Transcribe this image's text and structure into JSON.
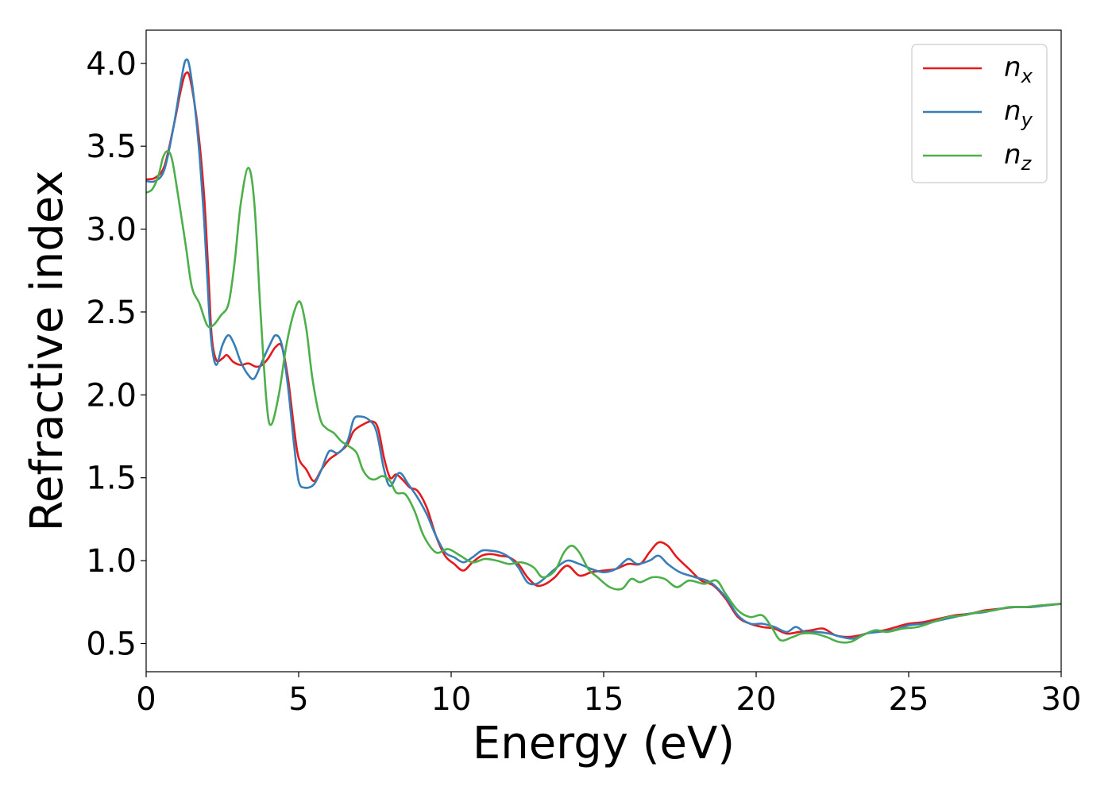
{
  "chart_data": {
    "type": "line",
    "xlabel": "Energy (eV)",
    "ylabel": "Refractive index",
    "xlim": [
      0,
      30
    ],
    "ylim": [
      0.33,
      4.2
    ],
    "xticks": [
      0,
      5,
      10,
      15,
      20,
      25,
      30
    ],
    "xtick_labels": [
      "0",
      "5",
      "10",
      "15",
      "20",
      "25",
      "30"
    ],
    "yticks": [
      0.5,
      1.0,
      1.5,
      2.0,
      2.5,
      3.0,
      3.5,
      4.0
    ],
    "ytick_labels": [
      "0.5",
      "1.0",
      "1.5",
      "2.0",
      "2.5",
      "3.0",
      "3.5",
      "4.0"
    ],
    "grid": false,
    "legend_position": "top-right",
    "series": [
      {
        "name": "n",
        "sub": "x",
        "color": "#e41a1c",
        "points": [
          [
            0,
            3.3
          ],
          [
            0.3,
            3.31
          ],
          [
            0.6,
            3.38
          ],
          [
            0.9,
            3.62
          ],
          [
            1.15,
            3.85
          ],
          [
            1.3,
            3.94
          ],
          [
            1.45,
            3.9
          ],
          [
            1.7,
            3.6
          ],
          [
            1.9,
            3.2
          ],
          [
            2.05,
            2.7
          ],
          [
            2.15,
            2.35
          ],
          [
            2.3,
            2.21
          ],
          [
            2.5,
            2.22
          ],
          [
            2.65,
            2.24
          ],
          [
            2.85,
            2.2
          ],
          [
            3.1,
            2.18
          ],
          [
            3.35,
            2.19
          ],
          [
            3.6,
            2.17
          ],
          [
            3.8,
            2.18
          ],
          [
            4.0,
            2.22
          ],
          [
            4.25,
            2.29
          ],
          [
            4.45,
            2.29
          ],
          [
            4.65,
            2.1
          ],
          [
            4.85,
            1.8
          ],
          [
            5.0,
            1.62
          ],
          [
            5.25,
            1.55
          ],
          [
            5.5,
            1.48
          ],
          [
            5.75,
            1.55
          ],
          [
            6.0,
            1.61
          ],
          [
            6.3,
            1.65
          ],
          [
            6.6,
            1.7
          ],
          [
            6.8,
            1.78
          ],
          [
            7.1,
            1.82
          ],
          [
            7.4,
            1.84
          ],
          [
            7.6,
            1.8
          ],
          [
            7.8,
            1.62
          ],
          [
            8.0,
            1.5
          ],
          [
            8.2,
            1.52
          ],
          [
            8.45,
            1.48
          ],
          [
            8.65,
            1.44
          ],
          [
            8.9,
            1.42
          ],
          [
            9.2,
            1.32
          ],
          [
            9.5,
            1.15
          ],
          [
            9.8,
            1.03
          ],
          [
            10.1,
            0.98
          ],
          [
            10.4,
            0.94
          ],
          [
            10.7,
            0.99
          ],
          [
            11.0,
            1.03
          ],
          [
            11.3,
            1.04
          ],
          [
            11.6,
            1.03
          ],
          [
            11.9,
            1.02
          ],
          [
            12.2,
            0.98
          ],
          [
            12.5,
            0.9
          ],
          [
            12.8,
            0.85
          ],
          [
            13.1,
            0.86
          ],
          [
            13.4,
            0.9
          ],
          [
            13.8,
            0.97
          ],
          [
            14.2,
            0.91
          ],
          [
            14.6,
            0.93
          ],
          [
            15.0,
            0.94
          ],
          [
            15.4,
            0.95
          ],
          [
            15.8,
            0.98
          ],
          [
            16.2,
            0.98
          ],
          [
            16.5,
            1.05
          ],
          [
            16.8,
            1.11
          ],
          [
            17.1,
            1.09
          ],
          [
            17.4,
            1.02
          ],
          [
            17.8,
            0.95
          ],
          [
            18.2,
            0.88
          ],
          [
            18.6,
            0.85
          ],
          [
            19.0,
            0.77
          ],
          [
            19.4,
            0.66
          ],
          [
            19.8,
            0.62
          ],
          [
            20.2,
            0.6
          ],
          [
            20.6,
            0.59
          ],
          [
            21.0,
            0.56
          ],
          [
            21.4,
            0.57
          ],
          [
            21.8,
            0.58
          ],
          [
            22.2,
            0.59
          ],
          [
            22.6,
            0.55
          ],
          [
            23.0,
            0.54
          ],
          [
            23.4,
            0.55
          ],
          [
            23.8,
            0.57
          ],
          [
            24.2,
            0.58
          ],
          [
            24.6,
            0.6
          ],
          [
            25.0,
            0.62
          ],
          [
            25.5,
            0.63
          ],
          [
            26.0,
            0.65
          ],
          [
            26.5,
            0.67
          ],
          [
            27.0,
            0.68
          ],
          [
            27.5,
            0.7
          ],
          [
            28.0,
            0.71
          ],
          [
            28.5,
            0.72
          ],
          [
            29.0,
            0.72
          ],
          [
            29.5,
            0.73
          ],
          [
            30.0,
            0.74
          ]
        ]
      },
      {
        "name": "n",
        "sub": "y",
        "color": "#377eb8",
        "points": [
          [
            0,
            3.29
          ],
          [
            0.3,
            3.29
          ],
          [
            0.6,
            3.36
          ],
          [
            0.9,
            3.62
          ],
          [
            1.15,
            3.9
          ],
          [
            1.3,
            4.02
          ],
          [
            1.45,
            3.95
          ],
          [
            1.7,
            3.55
          ],
          [
            1.9,
            3.05
          ],
          [
            2.05,
            2.55
          ],
          [
            2.15,
            2.3
          ],
          [
            2.3,
            2.18
          ],
          [
            2.5,
            2.3
          ],
          [
            2.7,
            2.36
          ],
          [
            2.9,
            2.3
          ],
          [
            3.1,
            2.2
          ],
          [
            3.35,
            2.12
          ],
          [
            3.55,
            2.1
          ],
          [
            3.8,
            2.2
          ],
          [
            4.05,
            2.3
          ],
          [
            4.25,
            2.36
          ],
          [
            4.45,
            2.3
          ],
          [
            4.65,
            2.05
          ],
          [
            4.85,
            1.7
          ],
          [
            5.0,
            1.48
          ],
          [
            5.2,
            1.44
          ],
          [
            5.5,
            1.46
          ],
          [
            5.75,
            1.55
          ],
          [
            6.0,
            1.66
          ],
          [
            6.3,
            1.65
          ],
          [
            6.6,
            1.72
          ],
          [
            6.8,
            1.85
          ],
          [
            7.0,
            1.87
          ],
          [
            7.3,
            1.85
          ],
          [
            7.55,
            1.78
          ],
          [
            7.8,
            1.55
          ],
          [
            8.0,
            1.45
          ],
          [
            8.3,
            1.53
          ],
          [
            8.6,
            1.46
          ],
          [
            8.9,
            1.38
          ],
          [
            9.2,
            1.28
          ],
          [
            9.5,
            1.15
          ],
          [
            9.8,
            1.05
          ],
          [
            10.1,
            1.02
          ],
          [
            10.4,
            0.99
          ],
          [
            10.7,
            1.02
          ],
          [
            11.0,
            1.06
          ],
          [
            11.3,
            1.06
          ],
          [
            11.6,
            1.05
          ],
          [
            11.9,
            1.02
          ],
          [
            12.2,
            0.96
          ],
          [
            12.5,
            0.87
          ],
          [
            12.8,
            0.86
          ],
          [
            13.1,
            0.9
          ],
          [
            13.4,
            0.95
          ],
          [
            13.8,
            1.0
          ],
          [
            14.2,
            0.98
          ],
          [
            14.6,
            0.95
          ],
          [
            15.0,
            0.93
          ],
          [
            15.4,
            0.95
          ],
          [
            15.8,
            1.01
          ],
          [
            16.1,
            0.98
          ],
          [
            16.5,
            1.0
          ],
          [
            16.8,
            1.03
          ],
          [
            17.1,
            0.98
          ],
          [
            17.5,
            0.93
          ],
          [
            18.0,
            0.9
          ],
          [
            18.5,
            0.87
          ],
          [
            19.0,
            0.78
          ],
          [
            19.4,
            0.67
          ],
          [
            19.8,
            0.62
          ],
          [
            20.2,
            0.62
          ],
          [
            20.6,
            0.6
          ],
          [
            21.0,
            0.57
          ],
          [
            21.3,
            0.6
          ],
          [
            21.6,
            0.57
          ],
          [
            22.0,
            0.57
          ],
          [
            22.4,
            0.56
          ],
          [
            22.8,
            0.54
          ],
          [
            23.2,
            0.53
          ],
          [
            23.6,
            0.56
          ],
          [
            24.0,
            0.57
          ],
          [
            24.5,
            0.58
          ],
          [
            25.0,
            0.61
          ],
          [
            25.5,
            0.62
          ],
          [
            26.0,
            0.64
          ],
          [
            26.5,
            0.66
          ],
          [
            27.0,
            0.68
          ],
          [
            27.5,
            0.69
          ],
          [
            28.0,
            0.71
          ],
          [
            28.5,
            0.72
          ],
          [
            29.0,
            0.72
          ],
          [
            29.5,
            0.73
          ],
          [
            30.0,
            0.74
          ]
        ]
      },
      {
        "name": "n",
        "sub": "z",
        "color": "#4daf4a",
        "points": [
          [
            0,
            3.22
          ],
          [
            0.2,
            3.24
          ],
          [
            0.4,
            3.32
          ],
          [
            0.55,
            3.43
          ],
          [
            0.7,
            3.47
          ],
          [
            0.85,
            3.42
          ],
          [
            1.05,
            3.2
          ],
          [
            1.3,
            2.9
          ],
          [
            1.5,
            2.65
          ],
          [
            1.75,
            2.55
          ],
          [
            2.0,
            2.42
          ],
          [
            2.2,
            2.42
          ],
          [
            2.45,
            2.48
          ],
          [
            2.7,
            2.55
          ],
          [
            2.9,
            2.8
          ],
          [
            3.1,
            3.15
          ],
          [
            3.35,
            3.37
          ],
          [
            3.55,
            3.15
          ],
          [
            3.75,
            2.5
          ],
          [
            3.95,
            1.95
          ],
          [
            4.1,
            1.82
          ],
          [
            4.35,
            2.0
          ],
          [
            4.6,
            2.3
          ],
          [
            4.85,
            2.5
          ],
          [
            5.05,
            2.56
          ],
          [
            5.25,
            2.4
          ],
          [
            5.45,
            2.1
          ],
          [
            5.7,
            1.86
          ],
          [
            5.9,
            1.8
          ],
          [
            6.15,
            1.77
          ],
          [
            6.4,
            1.72
          ],
          [
            6.65,
            1.69
          ],
          [
            6.9,
            1.65
          ],
          [
            7.1,
            1.55
          ],
          [
            7.3,
            1.5
          ],
          [
            7.5,
            1.49
          ],
          [
            7.75,
            1.51
          ],
          [
            8.0,
            1.48
          ],
          [
            8.2,
            1.41
          ],
          [
            8.5,
            1.4
          ],
          [
            8.8,
            1.3
          ],
          [
            9.1,
            1.15
          ],
          [
            9.5,
            1.05
          ],
          [
            9.9,
            1.07
          ],
          [
            10.3,
            1.03
          ],
          [
            10.7,
            0.99
          ],
          [
            11.1,
            1.01
          ],
          [
            11.5,
            1.0
          ],
          [
            11.9,
            0.98
          ],
          [
            12.3,
            0.99
          ],
          [
            12.7,
            0.96
          ],
          [
            13.0,
            0.9
          ],
          [
            13.4,
            0.94
          ],
          [
            13.7,
            1.05
          ],
          [
            13.95,
            1.09
          ],
          [
            14.2,
            1.05
          ],
          [
            14.5,
            0.95
          ],
          [
            14.8,
            0.9
          ],
          [
            15.2,
            0.84
          ],
          [
            15.6,
            0.83
          ],
          [
            15.9,
            0.89
          ],
          [
            16.2,
            0.87
          ],
          [
            16.6,
            0.9
          ],
          [
            17.0,
            0.89
          ],
          [
            17.4,
            0.84
          ],
          [
            17.8,
            0.88
          ],
          [
            18.3,
            0.86
          ],
          [
            18.7,
            0.88
          ],
          [
            19.0,
            0.8
          ],
          [
            19.4,
            0.7
          ],
          [
            19.8,
            0.66
          ],
          [
            20.2,
            0.67
          ],
          [
            20.5,
            0.6
          ],
          [
            20.8,
            0.52
          ],
          [
            21.2,
            0.54
          ],
          [
            21.5,
            0.56
          ],
          [
            21.9,
            0.56
          ],
          [
            22.3,
            0.54
          ],
          [
            22.7,
            0.51
          ],
          [
            23.1,
            0.51
          ],
          [
            23.5,
            0.55
          ],
          [
            23.9,
            0.58
          ],
          [
            24.3,
            0.57
          ],
          [
            24.8,
            0.59
          ],
          [
            25.3,
            0.6
          ],
          [
            25.8,
            0.63
          ],
          [
            26.3,
            0.66
          ],
          [
            26.8,
            0.67
          ],
          [
            27.3,
            0.69
          ],
          [
            27.8,
            0.7
          ],
          [
            28.3,
            0.72
          ],
          [
            28.8,
            0.72
          ],
          [
            29.3,
            0.73
          ],
          [
            30.0,
            0.74
          ]
        ]
      }
    ]
  }
}
